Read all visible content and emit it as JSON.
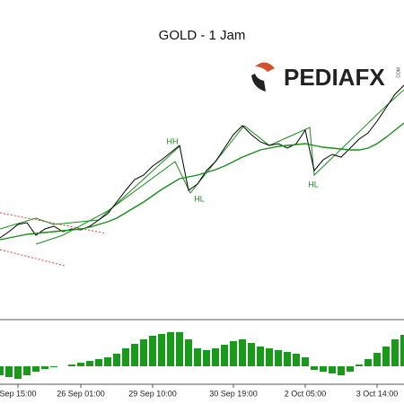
{
  "chart_data": [
    {
      "type": "line",
      "title": "GOLD - 1 Jam",
      "categories": [
        null,
        null,
        "Sep 15:00",
        null,
        null,
        null,
        null,
        null,
        null,
        "26 Sep 01:00",
        null,
        null,
        null,
        null,
        null,
        null,
        null,
        "29 Sep 10:00",
        null,
        null,
        null,
        null,
        null,
        null,
        null,
        null,
        "30 Sep 19:00",
        null,
        null,
        null,
        null,
        null,
        null,
        null,
        "2 Oct 05:00",
        null,
        null,
        null,
        null,
        null,
        null,
        null,
        "3 Oct 14:00",
        null,
        null,
        null
      ],
      "series": [
        {
          "color": "#000000",
          "values": [
            90,
            97,
            105,
            107,
            93,
            100,
            103,
            97,
            100,
            99,
            103,
            110,
            117,
            130,
            143,
            155,
            160,
            170,
            177,
            185,
            193,
            143,
            150,
            165,
            175,
            190,
            205,
            215,
            205,
            197,
            193,
            195,
            190,
            195,
            210,
            165,
            177,
            183,
            180,
            190,
            200,
            207,
            220,
            235,
            250,
            260
          ]
        },
        {
          "color": "#1a8c1a",
          "values": [
            88,
            90,
            92,
            94,
            95,
            96,
            97,
            98,
            99,
            100,
            102,
            105,
            108,
            112,
            118,
            124,
            130,
            137,
            144,
            150,
            156,
            158,
            160,
            163,
            166,
            170,
            175,
            180,
            184,
            188,
            190,
            192,
            193,
            194,
            195,
            193,
            191,
            190,
            189,
            188,
            188,
            190,
            195,
            202,
            210,
            218
          ]
        }
      ],
      "ylim": [
        0,
        355
      ],
      "annotations": [
        "HH",
        "HL",
        "HL"
      ]
    },
    {
      "type": "bar",
      "color": "#1a9a1a",
      "values": [
        -10,
        -12,
        -14,
        -10,
        -6,
        -3,
        -1,
        0,
        2,
        4,
        6,
        8,
        10,
        14,
        20,
        25,
        30,
        34,
        36,
        38,
        38,
        30,
        20,
        18,
        20,
        24,
        28,
        30,
        26,
        22,
        20,
        18,
        16,
        14,
        10,
        -4,
        -6,
        -8,
        -10,
        -6,
        2,
        8,
        15,
        22,
        30,
        35
      ],
      "ylim": [
        -20,
        48
      ]
    }
  ],
  "logo": {
    "text": "PEDIAFX",
    "suffix": ".COM"
  }
}
